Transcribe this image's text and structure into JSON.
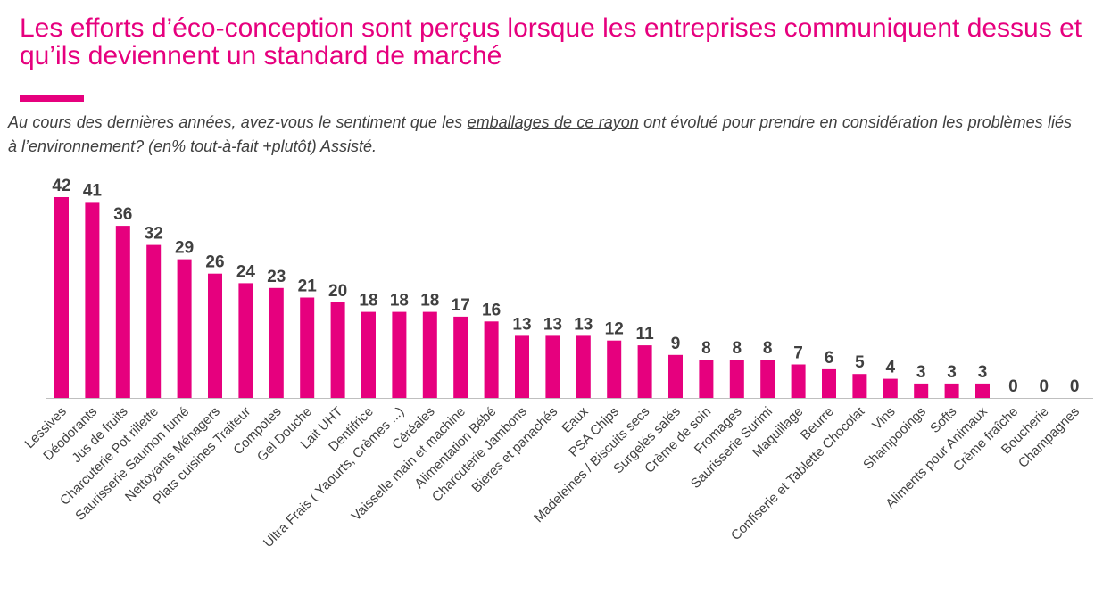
{
  "title": "Les efforts d’éco-conception sont perçus lorsque les entreprises communiquent dessus et qu’ils deviennent un standard de marché",
  "question": {
    "before": "Au cours des dernières années, avez-vous le sentiment que les ",
    "emphasis": "emballages de ce rayon",
    "after": " ont évolué pour prendre en considération les problèmes liés à l’environnement? (en% tout-à-fait +plutôt) Assisté."
  },
  "colors": {
    "accent": "#e6007e",
    "text": "#404040",
    "axis": "#bfbfbf"
  },
  "chart_data": {
    "type": "bar",
    "categories": [
      "Lessives",
      "Déodorants",
      "Jus de fruits",
      "Charcuterie Pot rillette",
      "Saurisserie Saumon fumé",
      "Nettoyants Ménagers",
      "Plats cuisinés Traiteur",
      "Compotes",
      "Gel Douche",
      "Lait UHT",
      "Dentifrice",
      "Ultra Frais ( Yaourts, Crèmes ...)",
      "Céréales",
      "Vaisselle main et machine",
      "Alimentation Bébé",
      "Charcuterie Jambons",
      "Bières et panachés",
      "Eaux",
      "PSA Chips",
      "Madeleines / Biscuits secs",
      "Surgelés salés",
      "Crème de soin",
      "Fromages",
      "Saurisserie Surimi",
      "Maquillage",
      "Beurre",
      "Confiserie et Tablette Chocolat",
      "Vins",
      "Shampooings",
      "Softs",
      "Aliments pour Animaux",
      "Crème fraîche",
      "Boucherie",
      "Champagnes"
    ],
    "values": [
      42,
      41,
      36,
      32,
      29,
      26,
      24,
      23,
      21,
      20,
      18,
      18,
      18,
      17,
      16,
      13,
      13,
      13,
      12,
      11,
      9,
      8,
      8,
      8,
      7,
      6,
      5,
      4,
      3,
      3,
      3,
      0,
      0,
      0
    ],
    "ylim": [
      0,
      42
    ],
    "grid": false,
    "data_labels": true
  }
}
